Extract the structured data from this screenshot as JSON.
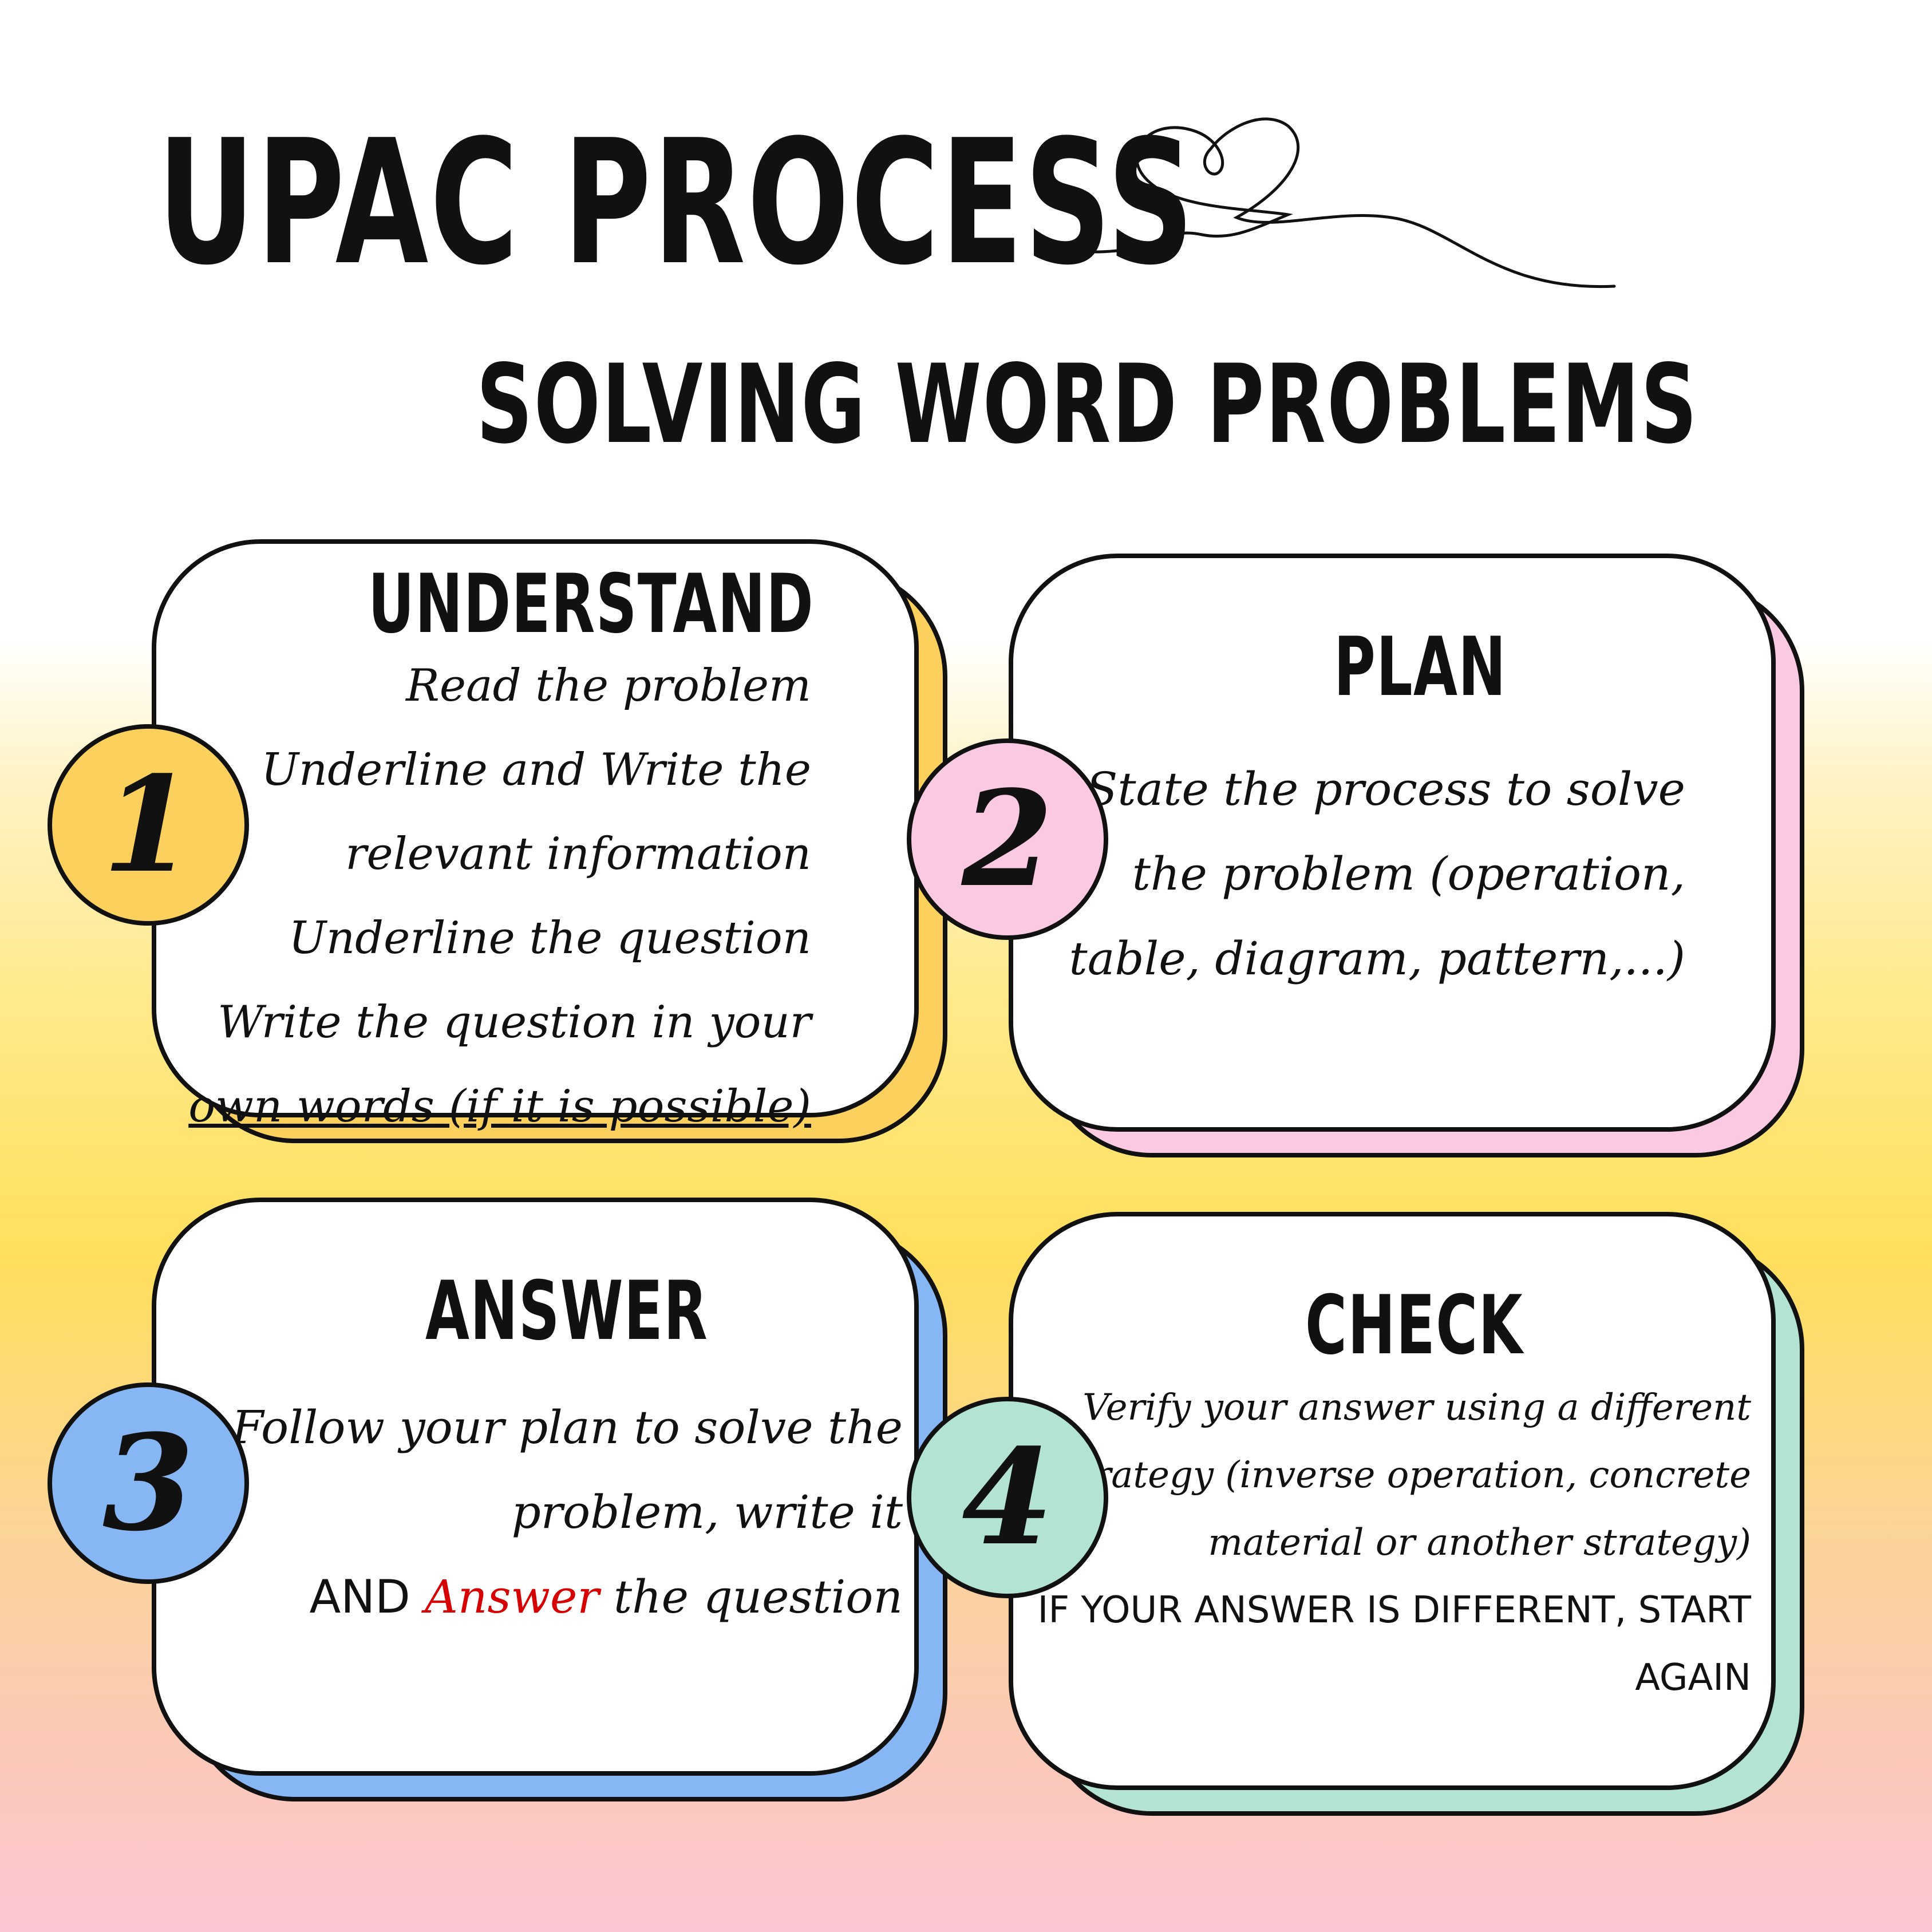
{
  "title": "UPAC PROCESS",
  "subtitle": "SOLVING WORD PROBLEMS",
  "colors": {
    "understand": "#fcd05c",
    "plan": "#fcc9e3",
    "answer": "#86b6f3",
    "check": "#b3e3d2",
    "accent": "#d60000"
  },
  "steps": [
    {
      "number": "1",
      "title": "UNDERSTAND",
      "lines": [
        "Read the problem",
        "Underline and Write the",
        "relevant information",
        "Underline the question",
        "Write the question in your",
        "own words (if it is possible)"
      ]
    },
    {
      "number": "2",
      "title": "PLAN",
      "lines": [
        "State the process to solve",
        "the problem (operation,",
        "table, diagram, pattern,...)"
      ]
    },
    {
      "number": "3",
      "title": "ANSWER",
      "lines": [
        "Follow your plan to solve the",
        "problem, write it"
      ],
      "last_line": {
        "prefix": "AND ",
        "highlight": "Answer",
        "suffix": " the question"
      }
    },
    {
      "number": "4",
      "title": "CHECK",
      "lines": [
        "Verify your answer using a different",
        "strategy (inverse operation, concrete",
        "material or another strategy)"
      ],
      "caps_lines": [
        "IF YOUR ANSWER IS DIFFERENT, START",
        "AGAIN"
      ]
    }
  ]
}
